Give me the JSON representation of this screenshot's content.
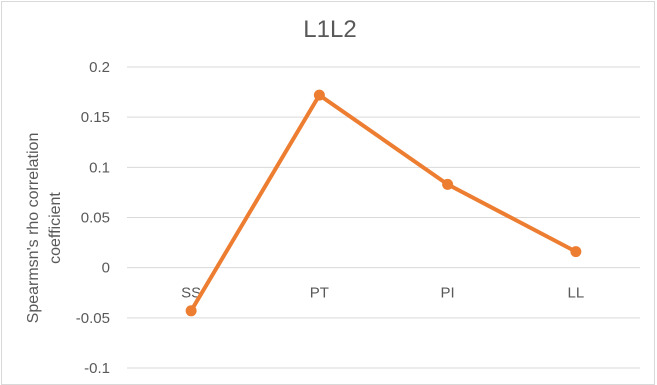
{
  "chart_data": {
    "type": "line",
    "title": "L1L2",
    "ylabel_lines": [
      "Spearmsn's rho correlation",
      "coefficient"
    ],
    "xlabel": "",
    "categories": [
      "SS",
      "PT",
      "PI",
      "LL"
    ],
    "series": [
      {
        "values": [
          -0.043,
          0.172,
          0.083,
          0.016
        ]
      }
    ],
    "ylim": [
      -0.1,
      0.2
    ],
    "yticks": [
      0.2,
      0.15,
      0.1,
      0.05,
      0,
      -0.05,
      -0.1
    ],
    "ytick_labels": [
      "0.2",
      "0.15",
      "0.1",
      "0.05",
      "0",
      "-0.05",
      "-0.1"
    ],
    "grid": true,
    "legend": "none",
    "colors": {
      "line": "#ED7D31",
      "grid": "#d9d9d9",
      "text": "#595959"
    }
  }
}
